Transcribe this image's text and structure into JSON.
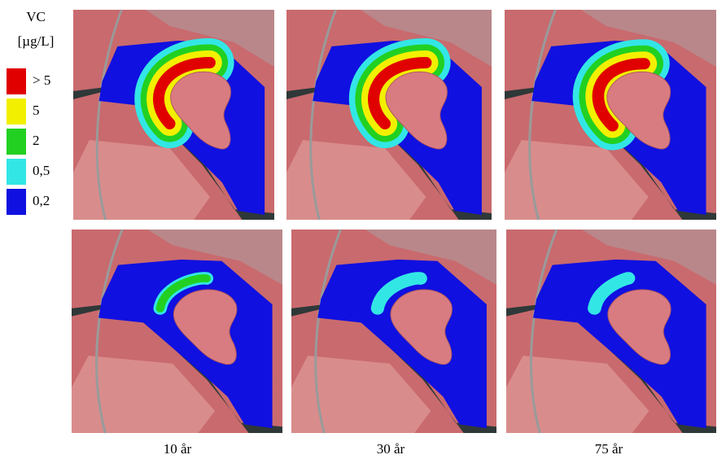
{
  "legend": {
    "title": "VC",
    "unit": "[µg/L]",
    "items": [
      {
        "label": "> 5",
        "color": "#e00000"
      },
      {
        "label": "5",
        "color": "#f2f000"
      },
      {
        "label": "2",
        "color": "#22d022"
      },
      {
        "label": "0,5",
        "color": "#33e6e6"
      },
      {
        "label": "0,2",
        "color": "#1010e0"
      }
    ]
  },
  "columns": [
    "10 år",
    "30 år",
    "75 år"
  ]
}
